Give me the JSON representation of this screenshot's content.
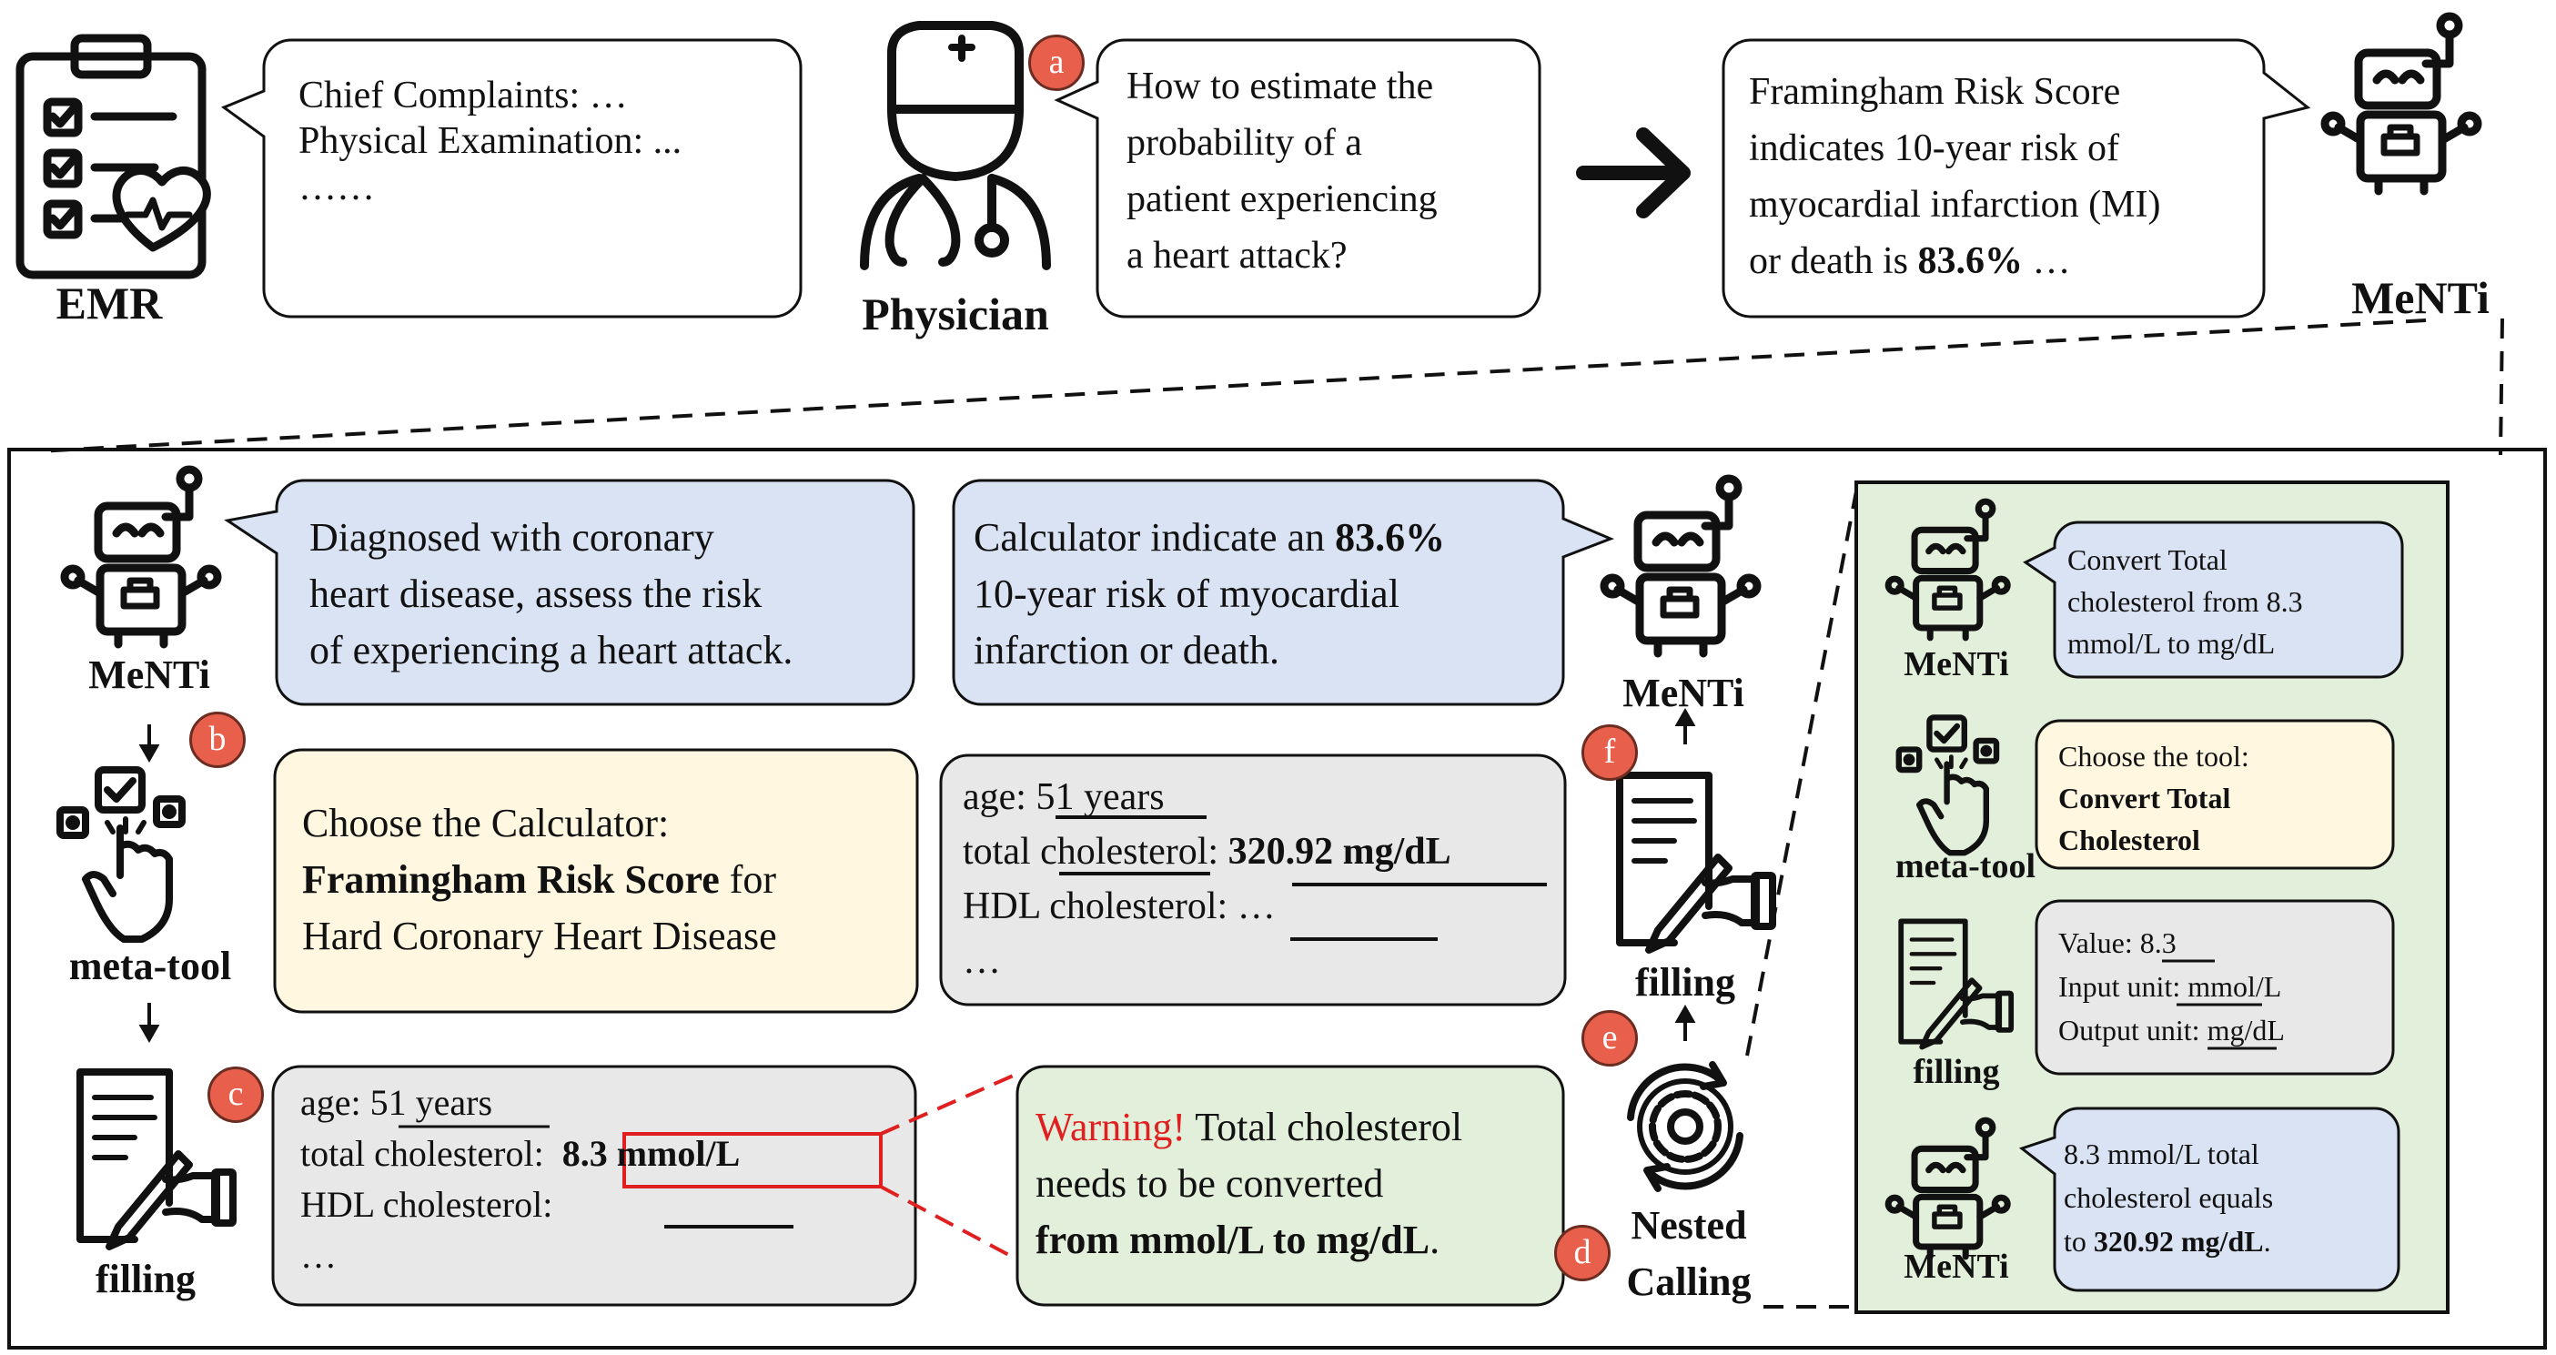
{
  "colors": {
    "bubble_blue": "#dae3f3",
    "bubble_yellow": "#fff7e0",
    "bubble_gray": "#e8e8e8",
    "bubble_green": "#e2efda",
    "panel_green": "#e2efda",
    "badge_red": "#e8604c",
    "warning_red": "#e02020",
    "highlight_box": "#e02020"
  },
  "top": {
    "emr_label": "EMR",
    "emr_bubble": [
      "Chief Complaints: …",
      "Physical Examination: ...",
      "……"
    ],
    "physician_label": "Physician",
    "badge_a": "a",
    "question": [
      "How to estimate the",
      "probability of a",
      "patient experiencing",
      "a heart attack?"
    ],
    "answer": [
      "Framingham Risk Score",
      "indicates 10-year risk of",
      "myocardial infarction (MI)"
    ],
    "answer_last_prefix": "or death is ",
    "answer_last_value": "83.6%",
    "answer_last_suffix": " …",
    "menti_label": "MeNTi"
  },
  "main": {
    "menti_label": "MeNTi",
    "diagnosis": [
      "Diagnosed with coronary",
      "heart disease, assess the risk",
      "of experiencing a heart attack."
    ],
    "badge_b": "b",
    "meta_tool_label": "meta-tool",
    "choose_calc_line1": "Choose the Calculator:",
    "choose_calc_bold": "Framingham Risk Score",
    "choose_calc_for": " for",
    "choose_calc_line3": "Hard Coronary Heart Disease",
    "badge_c": "c",
    "filling_label": "filling",
    "fill1_age_label": "age: ",
    "fill1_age_value": "51 years",
    "fill1_chol_label": "total cholesterol: ",
    "fill1_chol_value": "8.3 mmol/L",
    "fill1_hdl_label": "HDL cholesterol: ",
    "fill1_more": "…",
    "warning_word": "Warning!",
    "warning_rest": " Total cholesterol",
    "warning_line2": "needs to be converted",
    "warning_bold": "from mmol/L to mg/dL",
    "warning_end": ".",
    "nested_label": [
      "Nested",
      "Calling"
    ],
    "badge_d": "d",
    "badge_e": "e",
    "filling2_label": "filling",
    "badge_f": "f",
    "menti2_label": "MeNTi",
    "fill2_age_label": "age: ",
    "fill2_age_value": "51 years",
    "fill2_chol_label": "total cholesterol: ",
    "fill2_chol_value": "320.92 mg/dL",
    "fill2_hdl_label": "HDL cholesterol: ",
    "fill2_hdl_value": "…",
    "fill2_more": "…",
    "result_prefix": "Calculator indicate an ",
    "result_value": "83.6%",
    "result_line2": "10-year risk of myocardial",
    "result_line3": "infarction or death."
  },
  "nested": {
    "menti_label": "MeNTi",
    "convert_request": [
      "Convert Total",
      "cholesterol from 8.3",
      "mmol/L to mg/dL"
    ],
    "meta_tool_label": "meta-tool",
    "choose_tool_line1": "Choose the tool:",
    "choose_tool_bold": [
      "Convert Total",
      "Cholesterol"
    ],
    "filling_label": "filling",
    "value_label": "Value: ",
    "value_value": "8.3",
    "input_unit_label": "Input unit: ",
    "input_unit_value": "mmol/L",
    "output_unit_label": "Output unit: ",
    "output_unit_value": "mg/dL",
    "menti2_label": "MeNTi",
    "result_line1": "8.3 mmol/L total",
    "result_line2": "cholesterol equals",
    "result_prefix": "to ",
    "result_value": "320.92 mg/dL",
    "result_end": "."
  }
}
